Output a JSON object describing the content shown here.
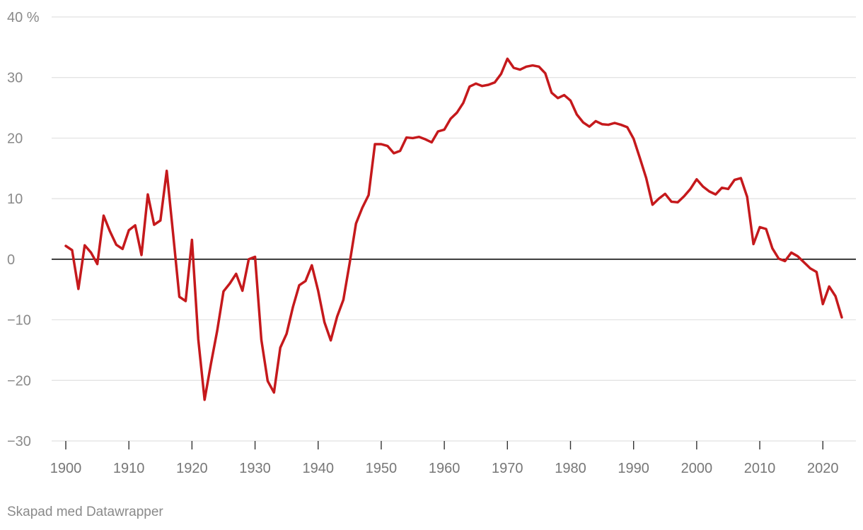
{
  "chart_data": {
    "type": "line",
    "title": "",
    "xlabel": "",
    "ylabel": "",
    "xlim": [
      1900,
      2023
    ],
    "ylim": [
      -30,
      40
    ],
    "x_ticks": [
      "1900",
      "1910",
      "1920",
      "1930",
      "1940",
      "1950",
      "1960",
      "1970",
      "1980",
      "1990",
      "2000",
      "2010",
      "2020"
    ],
    "y_ticks": [
      {
        "value": 40,
        "label": "40 %"
      },
      {
        "value": 30,
        "label": "30"
      },
      {
        "value": 20,
        "label": "20"
      },
      {
        "value": 10,
        "label": "10"
      },
      {
        "value": 0,
        "label": "0"
      },
      {
        "value": -10,
        "label": "−10"
      },
      {
        "value": -20,
        "label": "−20"
      },
      {
        "value": -30,
        "label": "−30"
      }
    ],
    "grid": true,
    "colors": {
      "line": "#c5191c",
      "grid": "#e1e1e1",
      "zero_line": "#111111"
    },
    "series": [
      {
        "x": [
          1900,
          1901,
          1902,
          1903,
          1904,
          1905,
          1906,
          1907,
          1908,
          1909,
          1910,
          1911,
          1912,
          1913,
          1914,
          1915,
          1916,
          1917,
          1918,
          1919,
          1920,
          1921,
          1922,
          1923,
          1924,
          1925,
          1926,
          1927,
          1928,
          1929,
          1930,
          1931,
          1932,
          1933,
          1934,
          1935,
          1936,
          1937,
          1938,
          1939,
          1940,
          1941,
          1942,
          1943,
          1944,
          1945,
          1946,
          1947,
          1948,
          1949,
          1950,
          1951,
          1952,
          1953,
          1954,
          1955,
          1956,
          1957,
          1958,
          1959,
          1960,
          1961,
          1962,
          1963,
          1964,
          1965,
          1966,
          1967,
          1968,
          1969,
          1970,
          1971,
          1972,
          1973,
          1974,
          1975,
          1976,
          1977,
          1978,
          1979,
          1980,
          1981,
          1982,
          1983,
          1984,
          1985,
          1986,
          1987,
          1988,
          1989,
          1990,
          1991,
          1992,
          1993,
          1994,
          1995,
          1996,
          1997,
          1998,
          1999,
          2000,
          2001,
          2002,
          2003,
          2004,
          2005,
          2006,
          2007,
          2008,
          2009,
          2010,
          2011,
          2012,
          2013,
          2014,
          2015,
          2016,
          2017,
          2018,
          2019,
          2020,
          2021,
          2022,
          2023
        ],
        "values": [
          2.2,
          1.5,
          -4.9,
          2.3,
          1.1,
          -0.8,
          7.2,
          4.6,
          2.4,
          1.7,
          4.8,
          5.6,
          0.7,
          10.7,
          5.7,
          6.4,
          14.6,
          4.3,
          -6.2,
          -6.9,
          3.2,
          -13.2,
          -23.2,
          -17.3,
          -11.8,
          -5.3,
          -4.0,
          -2.4,
          -5.2,
          0.0,
          0.4,
          -13.3,
          -20.1,
          -22.0,
          -14.6,
          -12.3,
          -7.9,
          -4.3,
          -3.6,
          -1.0,
          -5.2,
          -10.4,
          -13.4,
          -9.5,
          -6.7,
          -0.6,
          5.9,
          8.5,
          10.6,
          19.0,
          19.0,
          18.7,
          17.5,
          17.9,
          20.1,
          20.0,
          20.2,
          19.8,
          19.3,
          21.1,
          21.4,
          23.2,
          24.2,
          25.8,
          28.5,
          29.0,
          28.6,
          28.8,
          29.2,
          30.6,
          33.1,
          31.6,
          31.3,
          31.8,
          32.0,
          31.8,
          30.7,
          27.5,
          26.6,
          27.1,
          26.2,
          23.9,
          22.6,
          21.9,
          22.8,
          22.3,
          22.2,
          22.5,
          22.2,
          21.8,
          19.9,
          16.7,
          13.4,
          9.0,
          10.0,
          10.8,
          9.5,
          9.4,
          10.4,
          11.6,
          13.2,
          12.0,
          11.2,
          10.7,
          11.8,
          11.6,
          13.1,
          13.4,
          10.3,
          2.5,
          5.3,
          5.0,
          1.8,
          0.1,
          -0.3,
          1.1,
          0.5,
          -0.5,
          -1.5,
          -2.1,
          -7.4,
          -4.5,
          -6.1,
          -9.6
        ]
      }
    ]
  },
  "footer": {
    "credit": "Skapad med Datawrapper"
  }
}
